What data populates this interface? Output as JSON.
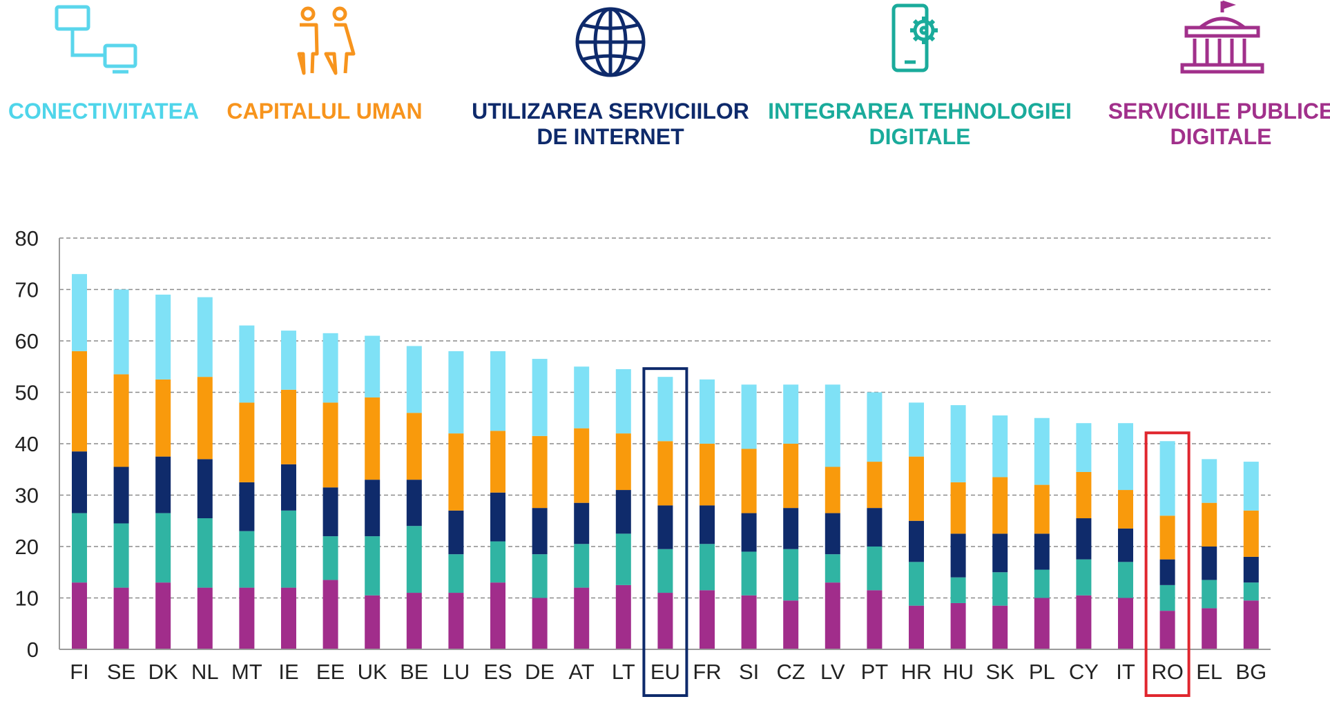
{
  "legend": [
    {
      "key": "connectivity",
      "lines": [
        "CONECTIVITATEA"
      ],
      "color": "#4fd5ea",
      "icon": "computer-network-icon"
    },
    {
      "key": "human",
      "lines": [
        "CAPITALUL UMAN"
      ],
      "color": "#f7941d",
      "icon": "people-icon"
    },
    {
      "key": "internet",
      "lines": [
        "UTILIZAREA SERVICIILOR",
        "DE INTERNET"
      ],
      "color": "#0e2a6b",
      "icon": "globe-icon"
    },
    {
      "key": "integration",
      "lines": [
        "INTEGRAREA TEHNOLOGIEI",
        "DIGITALE"
      ],
      "color": "#1aab9b",
      "icon": "mobile-gear-icon"
    },
    {
      "key": "public",
      "lines": [
        "SERVICIILE  PUBLICE",
        "DIGITALE"
      ],
      "color": "#a1308b",
      "icon": "government-building-icon"
    }
  ],
  "chart_data": {
    "type": "bar",
    "stacked": true,
    "categories": [
      "FI",
      "SE",
      "DK",
      "NL",
      "MT",
      "IE",
      "EE",
      "UK",
      "BE",
      "LU",
      "ES",
      "DE",
      "AT",
      "LT",
      "EU",
      "FR",
      "SI",
      "CZ",
      "LV",
      "PT",
      "HR",
      "HU",
      "SK",
      "PL",
      "CY",
      "IT",
      "RO",
      "EL",
      "BG"
    ],
    "series": [
      {
        "name": "SERVICIILE  PUBLICE DIGITALE",
        "color": "#a12d8b",
        "values": [
          13,
          12,
          13,
          12,
          12,
          12,
          13.5,
          10.5,
          11,
          11,
          13,
          10,
          12,
          12.5,
          11,
          11.5,
          10.5,
          9.5,
          13,
          11.5,
          8.5,
          9,
          8.5,
          10,
          10.5,
          10,
          7.5,
          8,
          9.5
        ]
      },
      {
        "name": "INTEGRAREA TEHNOLOGIEI DIGITALE",
        "color": "#30b4a3",
        "values": [
          13.5,
          12.5,
          13.5,
          13.5,
          11,
          15,
          8.5,
          11.5,
          13,
          7.5,
          8,
          8.5,
          8.5,
          10,
          8.5,
          9,
          8.5,
          10,
          5.5,
          8.5,
          8.5,
          5,
          6.5,
          5.5,
          7,
          7,
          5,
          5.5,
          3.5
        ]
      },
      {
        "name": "UTILIZAREA SERVICIILOR DE INTERNET",
        "color": "#0f2b6b",
        "values": [
          12,
          11,
          11,
          11.5,
          9.5,
          9,
          9.5,
          11,
          9,
          8.5,
          9.5,
          9,
          8,
          8.5,
          8.5,
          7.5,
          7.5,
          8,
          8,
          7.5,
          8,
          8.5,
          7.5,
          7,
          8,
          6.5,
          5,
          6.5,
          5
        ]
      },
      {
        "name": "CAPITALUL UMAN",
        "color": "#f99a0c",
        "values": [
          19.5,
          18,
          15,
          16,
          15.5,
          14.5,
          16.5,
          16,
          13,
          15,
          12,
          14,
          14.5,
          11,
          12.5,
          12,
          12.5,
          12.5,
          9,
          9,
          12.5,
          10,
          11,
          9.5,
          9,
          7.5,
          8.5,
          8.5,
          9
        ]
      },
      {
        "name": "CONECTIVITATEA",
        "color": "#7fe1f6",
        "values": [
          15,
          16.5,
          16.5,
          15.5,
          15,
          11.5,
          13.5,
          12,
          13,
          16,
          15.5,
          15,
          12,
          12.5,
          12.5,
          12.5,
          12.5,
          11.5,
          16,
          13.5,
          10.5,
          15,
          12,
          13,
          9.5,
          13,
          14.5,
          8.5,
          9.5
        ]
      }
    ],
    "ylim": [
      0,
      80
    ],
    "yticks": [
      0,
      10,
      20,
      30,
      40,
      50,
      60,
      70,
      80
    ],
    "grid": true,
    "highlights": [
      {
        "category": "EU",
        "color": "#0e2a6b"
      },
      {
        "category": "RO",
        "color": "#e0262e"
      }
    ]
  }
}
